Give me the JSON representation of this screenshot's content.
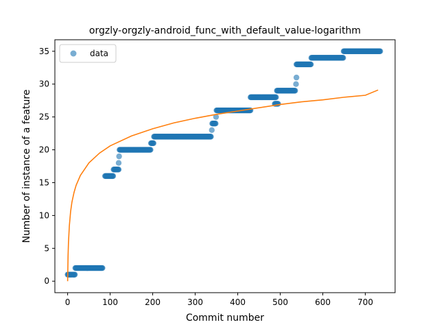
{
  "chart_data": {
    "type": "scatter",
    "title": "orgzly-orgzly-android_func_with_default_value-logarithm",
    "xlabel": "Commit number",
    "ylabel": "Number of instance of a feature",
    "xlim": [
      -30,
      770
    ],
    "ylim": [
      -1.75,
      36.75
    ],
    "xticks": [
      0,
      100,
      200,
      300,
      400,
      500,
      600,
      700
    ],
    "yticks": [
      0,
      5,
      10,
      15,
      20,
      25,
      30,
      35
    ],
    "grid": false,
    "legend": {
      "position": "top-left",
      "entries": [
        "data"
      ]
    },
    "colors": {
      "data": "#1f77b4",
      "fit": "#ff7f0e"
    },
    "series": [
      {
        "name": "data",
        "kind": "scatter",
        "segments": [
          {
            "x_start": 0,
            "x_end": 10,
            "y": 1
          },
          {
            "x_start": 12,
            "x_end": 17,
            "y": 1
          },
          {
            "x_start": 18,
            "x_end": 82,
            "y": 2
          },
          {
            "x_start": 88,
            "x_end": 107,
            "y": 16
          },
          {
            "x_start": 108,
            "x_end": 120,
            "y": 17
          },
          {
            "x_start": 120,
            "x_end": 120,
            "y": 18
          },
          {
            "x_start": 121,
            "x_end": 121,
            "y": 19
          },
          {
            "x_start": 122,
            "x_end": 195,
            "y": 20
          },
          {
            "x_start": 196,
            "x_end": 202,
            "y": 21
          },
          {
            "x_start": 203,
            "x_end": 337,
            "y": 22
          },
          {
            "x_start": 339,
            "x_end": 339,
            "y": 23
          },
          {
            "x_start": 340,
            "x_end": 348,
            "y": 24
          },
          {
            "x_start": 349,
            "x_end": 349,
            "y": 25
          },
          {
            "x_start": 350,
            "x_end": 430,
            "y": 26
          },
          {
            "x_start": 430,
            "x_end": 490,
            "y": 28
          },
          {
            "x_start": 487,
            "x_end": 495,
            "y": 27
          },
          {
            "x_start": 492,
            "x_end": 535,
            "y": 29
          },
          {
            "x_start": 537,
            "x_end": 537,
            "y": 30
          },
          {
            "x_start": 538,
            "x_end": 538,
            "y": 31
          },
          {
            "x_start": 538,
            "x_end": 572,
            "y": 33
          },
          {
            "x_start": 573,
            "x_end": 648,
            "y": 34
          },
          {
            "x_start": 649,
            "x_end": 735,
            "y": 35
          }
        ]
      },
      {
        "kind": "line",
        "x": [
          0,
          1,
          2,
          4,
          7,
          10,
          15,
          20,
          30,
          50,
          75,
          100,
          150,
          200,
          250,
          300,
          350,
          400,
          450,
          500,
          550,
          600,
          650,
          700,
          730
        ],
        "y": [
          0,
          3.8,
          5.9,
          8.4,
          10.6,
          12.0,
          13.5,
          14.6,
          16.1,
          18.0,
          19.5,
          20.6,
          22.1,
          23.2,
          24.1,
          24.8,
          25.4,
          25.9,
          26.4,
          26.9,
          27.3,
          27.6,
          28.0,
          28.3,
          29.1
        ]
      }
    ]
  }
}
